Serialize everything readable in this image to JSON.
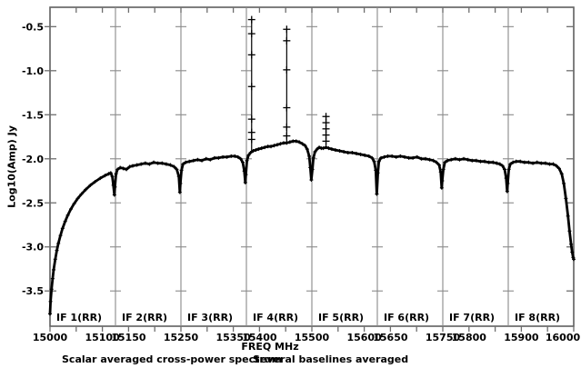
{
  "chart_data": {
    "type": "line",
    "title": "",
    "xlabel": "FREQ MHz",
    "ylabel": "Log10(Amp) Jy",
    "captions": {
      "left": "Scalar averaged cross-power spectrum",
      "right": "Several baselines averaged"
    },
    "xlim": [
      15000,
      16000
    ],
    "ylim": [
      -3.9,
      -0.28
    ],
    "grid": false,
    "legend": "none",
    "y_ticks": [
      {
        "value": -0.5,
        "label": "-0.5"
      },
      {
        "value": -1.0,
        "label": "-1.0"
      },
      {
        "value": -1.5,
        "label": "-1.5"
      },
      {
        "value": -2.0,
        "label": "-2.0"
      },
      {
        "value": -2.5,
        "label": "-2.5"
      },
      {
        "value": -3.0,
        "label": "-3.0"
      },
      {
        "value": -3.5,
        "label": "-3.5"
      }
    ],
    "x_minor_tick_step_mhz": 50,
    "x_tick_labels": [
      {
        "freq": 15000,
        "label": "15000"
      },
      {
        "freq": 15100,
        "label": "15100"
      },
      {
        "freq": 15150,
        "label": "15150"
      },
      {
        "freq": 15250,
        "label": "15250"
      },
      {
        "freq": 15350,
        "label": "15350"
      },
      {
        "freq": 15400,
        "label": "15400"
      },
      {
        "freq": 15500,
        "label": "15500"
      },
      {
        "freq": 15600,
        "label": "15600"
      },
      {
        "freq": 15650,
        "label": "15650"
      },
      {
        "freq": 15750,
        "label": "15750"
      },
      {
        "freq": 15800,
        "label": "15800"
      },
      {
        "freq": 15900,
        "label": "15900"
      },
      {
        "freq": 16000,
        "label": "16000"
      }
    ],
    "panels": [
      {
        "label": "IF 1(RR)",
        "start": 15000,
        "end": 15125
      },
      {
        "label": "IF 2(RR)",
        "start": 15125,
        "end": 15250
      },
      {
        "label": "IF 3(RR)",
        "start": 15250,
        "end": 15375
      },
      {
        "label": "IF 4(RR)",
        "start": 15375,
        "end": 15500
      },
      {
        "label": "IF 5(RR)",
        "start": 15500,
        "end": 15625
      },
      {
        "label": "IF 6(RR)",
        "start": 15625,
        "end": 15750
      },
      {
        "label": "IF 7(RR)",
        "start": 15750,
        "end": 15875
      },
      {
        "label": "IF 8(RR)",
        "start": 15875,
        "end": 16000
      }
    ],
    "series": [
      {
        "name": "scalar averaged cross-power amplitude",
        "marker": "plus",
        "points": [
          [
            15000,
            -3.76
          ],
          [
            15001,
            -3.62
          ],
          [
            15003,
            -3.48
          ],
          [
            15005,
            -3.36
          ],
          [
            15007,
            -3.26
          ],
          [
            15010,
            -3.14
          ],
          [
            15013,
            -3.04
          ],
          [
            15016,
            -2.96
          ],
          [
            15020,
            -2.87
          ],
          [
            15024,
            -2.79
          ],
          [
            15029,
            -2.71
          ],
          [
            15034,
            -2.64
          ],
          [
            15040,
            -2.57
          ],
          [
            15046,
            -2.51
          ],
          [
            15053,
            -2.45
          ],
          [
            15060,
            -2.4
          ],
          [
            15068,
            -2.35
          ],
          [
            15077,
            -2.3
          ],
          [
            15086,
            -2.26
          ],
          [
            15096,
            -2.22
          ],
          [
            15105,
            -2.19
          ],
          [
            15112,
            -2.17
          ],
          [
            15116,
            -2.16
          ],
          [
            15119,
            -2.2
          ],
          [
            15121,
            -2.3
          ],
          [
            15123,
            -2.41
          ],
          [
            15124,
            -2.32
          ],
          [
            15126,
            -2.17
          ],
          [
            15129,
            -2.12
          ],
          [
            15134,
            -2.1
          ],
          [
            15140,
            -2.11
          ],
          [
            15146,
            -2.12
          ],
          [
            15152,
            -2.09
          ],
          [
            15158,
            -2.08
          ],
          [
            15166,
            -2.07
          ],
          [
            15174,
            -2.06
          ],
          [
            15182,
            -2.05
          ],
          [
            15190,
            -2.06
          ],
          [
            15198,
            -2.04
          ],
          [
            15206,
            -2.05
          ],
          [
            15214,
            -2.05
          ],
          [
            15222,
            -2.06
          ],
          [
            15230,
            -2.07
          ],
          [
            15237,
            -2.09
          ],
          [
            15242,
            -2.12
          ],
          [
            15246,
            -2.2
          ],
          [
            15248,
            -2.38
          ],
          [
            15249,
            -2.28
          ],
          [
            15251,
            -2.13
          ],
          [
            15254,
            -2.06
          ],
          [
            15259,
            -2.04
          ],
          [
            15266,
            -2.03
          ],
          [
            15274,
            -2.02
          ],
          [
            15282,
            -2.01
          ],
          [
            15290,
            -2.02
          ],
          [
            15298,
            -2.0
          ],
          [
            15306,
            -2.01
          ],
          [
            15314,
            -1.99
          ],
          [
            15322,
            -1.99
          ],
          [
            15330,
            -1.98
          ],
          [
            15338,
            -1.98
          ],
          [
            15346,
            -1.97
          ],
          [
            15353,
            -1.97
          ],
          [
            15359,
            -1.98
          ],
          [
            15364,
            -2.0
          ],
          [
            15368,
            -2.04
          ],
          [
            15371,
            -2.14
          ],
          [
            15373,
            -2.27
          ],
          [
            15374,
            -2.18
          ],
          [
            15376,
            -2.02
          ],
          [
            15379,
            -1.96
          ],
          [
            15383,
            -1.93
          ],
          [
            15388,
            -1.91
          ],
          [
            15393,
            -1.9
          ],
          [
            15398,
            -1.89
          ],
          [
            15404,
            -1.88
          ],
          [
            15410,
            -1.87
          ],
          [
            15416,
            -1.86
          ],
          [
            15422,
            -1.86
          ],
          [
            15428,
            -1.85
          ],
          [
            15434,
            -1.84
          ],
          [
            15440,
            -1.83
          ],
          [
            15446,
            -1.82
          ],
          [
            15452,
            -1.82
          ],
          [
            15458,
            -1.81
          ],
          [
            15464,
            -1.8
          ],
          [
            15470,
            -1.8
          ],
          [
            15476,
            -1.81
          ],
          [
            15482,
            -1.83
          ],
          [
            15487,
            -1.85
          ],
          [
            15491,
            -1.89
          ],
          [
            15495,
            -1.97
          ],
          [
            15497,
            -2.1
          ],
          [
            15499,
            -2.24
          ],
          [
            15501,
            -2.12
          ],
          [
            15503,
            -1.99
          ],
          [
            15506,
            -1.92
          ],
          [
            15510,
            -1.89
          ],
          [
            15514,
            -1.87
          ],
          [
            15518,
            -1.88
          ],
          [
            15522,
            -1.88
          ],
          [
            15527,
            -1.87
          ],
          [
            15532,
            -1.88
          ],
          [
            15538,
            -1.89
          ],
          [
            15545,
            -1.9
          ],
          [
            15553,
            -1.91
          ],
          [
            15561,
            -1.92
          ],
          [
            15569,
            -1.93
          ],
          [
            15577,
            -1.93
          ],
          [
            15585,
            -1.94
          ],
          [
            15593,
            -1.95
          ],
          [
            15601,
            -1.96
          ],
          [
            15609,
            -1.97
          ],
          [
            15615,
            -1.99
          ],
          [
            15619,
            -2.03
          ],
          [
            15622,
            -2.13
          ],
          [
            15624,
            -2.4
          ],
          [
            15626,
            -2.16
          ],
          [
            15628,
            -2.03
          ],
          [
            15632,
            -1.99
          ],
          [
            15638,
            -1.98
          ],
          [
            15645,
            -1.97
          ],
          [
            15653,
            -1.97
          ],
          [
            15661,
            -1.98
          ],
          [
            15669,
            -1.97
          ],
          [
            15677,
            -1.98
          ],
          [
            15685,
            -1.99
          ],
          [
            15693,
            -1.99
          ],
          [
            15701,
            -1.98
          ],
          [
            15709,
            -2.0
          ],
          [
            15717,
            -2.0
          ],
          [
            15725,
            -2.01
          ],
          [
            15732,
            -2.02
          ],
          [
            15738,
            -2.04
          ],
          [
            15743,
            -2.07
          ],
          [
            15746,
            -2.15
          ],
          [
            15748,
            -2.33
          ],
          [
            15749,
            -2.25
          ],
          [
            15751,
            -2.12
          ],
          [
            15754,
            -2.04
          ],
          [
            15759,
            -2.02
          ],
          [
            15766,
            -2.01
          ],
          [
            15774,
            -2.0
          ],
          [
            15782,
            -2.01
          ],
          [
            15790,
            -2.0
          ],
          [
            15798,
            -2.01
          ],
          [
            15806,
            -2.02
          ],
          [
            15814,
            -2.02
          ],
          [
            15822,
            -2.03
          ],
          [
            15830,
            -2.03
          ],
          [
            15838,
            -2.04
          ],
          [
            15846,
            -2.04
          ],
          [
            15853,
            -2.05
          ],
          [
            15859,
            -2.06
          ],
          [
            15864,
            -2.08
          ],
          [
            15868,
            -2.12
          ],
          [
            15871,
            -2.22
          ],
          [
            15873,
            -2.37
          ],
          [
            15874,
            -2.28
          ],
          [
            15876,
            -2.12
          ],
          [
            15879,
            -2.06
          ],
          [
            15884,
            -2.04
          ],
          [
            15890,
            -2.03
          ],
          [
            15898,
            -2.03
          ],
          [
            15906,
            -2.04
          ],
          [
            15914,
            -2.04
          ],
          [
            15922,
            -2.05
          ],
          [
            15930,
            -2.04
          ],
          [
            15938,
            -2.05
          ],
          [
            15946,
            -2.05
          ],
          [
            15954,
            -2.06
          ],
          [
            15961,
            -2.06
          ],
          [
            15967,
            -2.08
          ],
          [
            15972,
            -2.11
          ],
          [
            15977,
            -2.17
          ],
          [
            15981,
            -2.28
          ],
          [
            15985,
            -2.45
          ],
          [
            15989,
            -2.65
          ],
          [
            15992,
            -2.82
          ],
          [
            15995,
            -2.97
          ],
          [
            15997,
            -3.06
          ],
          [
            15999,
            -3.12
          ],
          [
            16000,
            -3.14
          ]
        ]
      }
    ],
    "spikes": [
      {
        "freq": 15385,
        "base": -1.93,
        "top": -0.42,
        "markers": [
          -0.42,
          -0.58,
          -0.82,
          -1.18,
          -1.55,
          -1.7,
          -1.78
        ]
      },
      {
        "freq": 15452,
        "base": -1.82,
        "top": -0.53,
        "markers": [
          -0.53,
          -0.66,
          -0.99,
          -1.42,
          -1.64,
          -1.74
        ]
      },
      {
        "freq": 15527,
        "base": -1.88,
        "top": -1.52,
        "markers": [
          -1.52,
          -1.59,
          -1.66,
          -1.73,
          -1.8
        ]
      }
    ],
    "colors": {
      "background": "#ffffff",
      "data": "#000000",
      "frame": "#5f5f5f",
      "divider": "#8a8a8a",
      "tick": "#6e6e6e",
      "text": "#000000"
    }
  }
}
